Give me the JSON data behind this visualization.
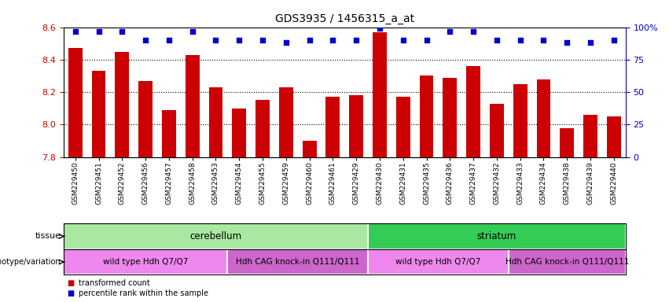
{
  "title": "GDS3935 / 1456315_a_at",
  "samples": [
    "GSM229450",
    "GSM229451",
    "GSM229452",
    "GSM229456",
    "GSM229457",
    "GSM229458",
    "GSM229453",
    "GSM229454",
    "GSM229455",
    "GSM229459",
    "GSM229460",
    "GSM229461",
    "GSM229429",
    "GSM229430",
    "GSM229431",
    "GSM229435",
    "GSM229436",
    "GSM229437",
    "GSM229432",
    "GSM229433",
    "GSM229434",
    "GSM229438",
    "GSM229439",
    "GSM229440"
  ],
  "bar_values": [
    8.47,
    8.33,
    8.45,
    8.27,
    8.09,
    8.43,
    8.23,
    8.1,
    8.15,
    8.23,
    7.9,
    8.17,
    8.18,
    8.57,
    8.17,
    8.3,
    8.29,
    8.36,
    8.13,
    8.25,
    8.28,
    7.98,
    8.06,
    8.05
  ],
  "percentile_values": [
    97,
    97,
    97,
    90,
    90,
    97,
    90,
    90,
    90,
    88,
    90,
    90,
    90,
    99,
    90,
    90,
    97,
    97,
    90,
    90,
    90,
    88,
    88,
    90
  ],
  "bar_color": "#cc0000",
  "percentile_color": "#0000cc",
  "ylim_left": [
    7.8,
    8.6
  ],
  "ylim_right": [
    0,
    100
  ],
  "yticks_left": [
    7.8,
    8.0,
    8.2,
    8.4,
    8.6
  ],
  "yticks_right": [
    0,
    25,
    50,
    75,
    100
  ],
  "ytick_labels_right": [
    "0",
    "25",
    "50",
    "75",
    "100%"
  ],
  "grid_values": [
    8.0,
    8.2,
    8.4
  ],
  "tissue_groups": [
    {
      "label": "cerebellum",
      "start": 0,
      "end": 13,
      "color": "#a8e8a0"
    },
    {
      "label": "striatum",
      "start": 13,
      "end": 24,
      "color": "#33cc55"
    }
  ],
  "genotype_groups": [
    {
      "label": "wild type Hdh Q7/Q7",
      "start": 0,
      "end": 7,
      "color": "#ee88ee"
    },
    {
      "label": "Hdh CAG knock-in Q111/Q111",
      "start": 7,
      "end": 13,
      "color": "#cc66cc"
    },
    {
      "label": "wild type Hdh Q7/Q7",
      "start": 13,
      "end": 19,
      "color": "#ee88ee"
    },
    {
      "label": "Hdh CAG knock-in Q111/Q111",
      "start": 19,
      "end": 24,
      "color": "#cc66cc"
    }
  ],
  "legend_items": [
    {
      "label": "transformed count",
      "color": "#cc0000"
    },
    {
      "label": "percentile rank within the sample",
      "color": "#0000cc"
    }
  ],
  "plot_bg_color": "#ffffff",
  "tick_label_bg": "#dddddd"
}
